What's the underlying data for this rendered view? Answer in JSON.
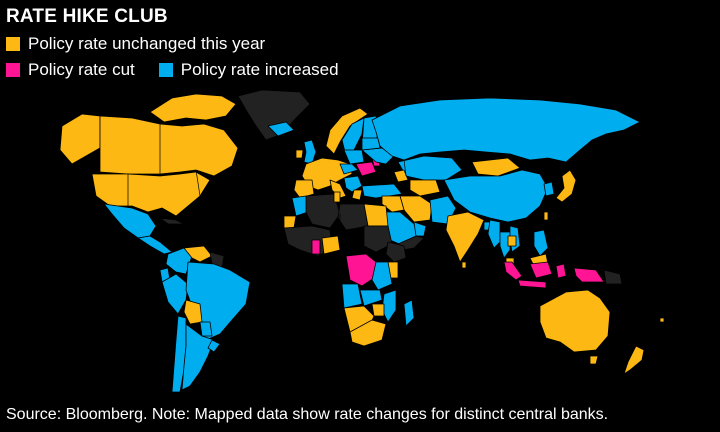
{
  "title": "RATE HIKE CLUB",
  "legend": [
    {
      "label": "Policy rate unchanged this year",
      "color": "#FDB813"
    },
    {
      "label": "Policy rate cut",
      "color": "#FF1493"
    },
    {
      "label": "Policy rate increased",
      "color": "#00AEEF"
    }
  ],
  "no_data_color": "#222222",
  "source": "Source: Bloomberg. Note: Mapped data show rate changes for distinct central banks."
}
